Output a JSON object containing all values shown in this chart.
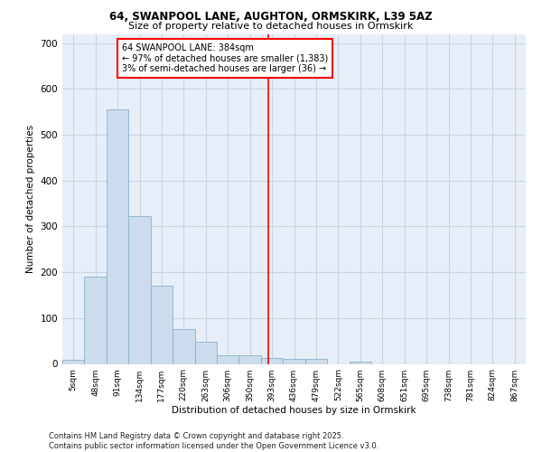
{
  "title1": "64, SWANPOOL LANE, AUGHTON, ORMSKIRK, L39 5AZ",
  "title2": "Size of property relative to detached houses in Ormskirk",
  "xlabel": "Distribution of detached houses by size in Ormskirk",
  "ylabel": "Number of detached properties",
  "bin_labels": [
    "5sqm",
    "48sqm",
    "91sqm",
    "134sqm",
    "177sqm",
    "220sqm",
    "263sqm",
    "306sqm",
    "350sqm",
    "393sqm",
    "436sqm",
    "479sqm",
    "522sqm",
    "565sqm",
    "608sqm",
    "651sqm",
    "695sqm",
    "738sqm",
    "781sqm",
    "824sqm",
    "867sqm"
  ],
  "bar_values": [
    8,
    190,
    555,
    323,
    170,
    75,
    48,
    18,
    18,
    13,
    11,
    10,
    0,
    5,
    0,
    0,
    0,
    0,
    0,
    0,
    0
  ],
  "bar_color": "#ccdcec",
  "bar_edgecolor": "#89b0cc",
  "vline_x": 8.82,
  "vline_color": "red",
  "annotation_text": "64 SWANPOOL LANE: 384sqm\n← 97% of detached houses are smaller (1,383)\n3% of semi-detached houses are larger (36) →",
  "annotation_box_color": "red",
  "annotation_bg": "white",
  "ylim": [
    0,
    720
  ],
  "yticks": [
    0,
    100,
    200,
    300,
    400,
    500,
    600,
    700
  ],
  "grid_color": "#c8d4e4",
  "bg_color": "#e8eef8",
  "footer": "Contains HM Land Registry data © Crown copyright and database right 2025.\nContains public sector information licensed under the Open Government Licence v3.0."
}
